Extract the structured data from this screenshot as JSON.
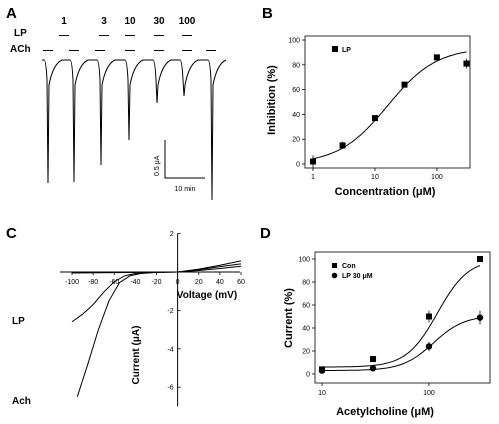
{
  "panel_labels": {
    "a": "A",
    "b": "B",
    "c": "C",
    "d": "D"
  },
  "trace_panel": {
    "lp_label": "LP",
    "ach_label": "ACh",
    "concentrations": [
      "1",
      "3",
      "10",
      "30",
      "100"
    ],
    "dash": "—",
    "scale_current": "0.5 μA",
    "scale_time": "10 min"
  },
  "chart_data": [
    {
      "panel": "B",
      "type": "scatter",
      "xscale": "log",
      "xlabel": "Concentration (μM)",
      "ylabel": "Inhibition (%)",
      "xlim": [
        1,
        300
      ],
      "ylim": [
        0,
        100
      ],
      "xticks": [
        1,
        10,
        100
      ],
      "xtick_labels": [
        "1",
        "10",
        "100"
      ],
      "yticks": [
        0,
        20,
        40,
        60,
        80,
        100
      ],
      "legend": "top-left",
      "series": [
        {
          "name": "LP",
          "marker": "square",
          "x": [
            1,
            3,
            10,
            30,
            100,
            300
          ],
          "y": [
            2,
            15,
            37,
            64,
            86,
            81
          ],
          "err": [
            5,
            3,
            2,
            2,
            2,
            4
          ],
          "fit": {
            "bottom": 0,
            "top": 94,
            "ec50": 16,
            "hill": 1.1
          }
        }
      ]
    },
    {
      "panel": "C",
      "type": "line",
      "xlabel": "Voltage (mV)",
      "ylabel": "Current (μA)",
      "xlim": [
        -100,
        60
      ],
      "ylim": [
        -7,
        2
      ],
      "xticks": [
        -100,
        -80,
        -60,
        -40,
        -20,
        0,
        20,
        40,
        60
      ],
      "yticks": [
        2,
        0,
        -2,
        -4,
        -6
      ],
      "series": [
        {
          "name": "LP",
          "x": [
            -100,
            -90,
            -80,
            -70,
            -60,
            -50,
            -40,
            -20,
            0,
            20,
            40,
            60
          ],
          "y": [
            -2.6,
            -2.2,
            -1.7,
            -1.05,
            -0.5,
            -0.2,
            -0.08,
            -0.02,
            0,
            0.12,
            0.28,
            0.42
          ]
        },
        {
          "name": "Ach",
          "x": [
            -95,
            -85,
            -75,
            -65,
            -55,
            -45,
            -35,
            -20,
            0,
            20,
            40,
            60
          ],
          "y": [
            -6.5,
            -4.8,
            -3.0,
            -1.5,
            -0.55,
            -0.2,
            -0.08,
            -0.02,
            0,
            0.15,
            0.35,
            0.58
          ]
        },
        {
          "name": "",
          "x": [
            -100,
            -60,
            -20,
            0,
            20,
            40,
            60
          ],
          "y": [
            -0.05,
            -0.03,
            -0.01,
            0,
            0.08,
            0.18,
            0.3
          ]
        }
      ]
    },
    {
      "panel": "D",
      "type": "scatter",
      "xscale": "log",
      "xlabel": "Acetylcholine (μM)",
      "ylabel": "Current (%)",
      "xlim": [
        10,
        300
      ],
      "ylim": [
        0,
        100
      ],
      "xticks": [
        10,
        100
      ],
      "xtick_labels": [
        "10",
        "100"
      ],
      "yticks": [
        0,
        20,
        40,
        60,
        80,
        100
      ],
      "legend": "top-left",
      "series": [
        {
          "name": "Con",
          "marker": "square",
          "x": [
            10,
            30,
            100,
            300
          ],
          "y": [
            4,
            13,
            50,
            100
          ],
          "err": [
            2,
            2,
            5,
            2
          ],
          "fit": {
            "bottom": 6,
            "top": 100,
            "ec50": 120,
            "hill": 3.0
          }
        },
        {
          "name": "LP 30 μM",
          "marker": "circle",
          "x": [
            10,
            30,
            100,
            300
          ],
          "y": [
            3,
            5,
            24,
            49
          ],
          "err": [
            2,
            2,
            4,
            6
          ],
          "fit": {
            "bottom": 3,
            "top": 51,
            "ec50": 110,
            "hill": 3.0
          }
        }
      ]
    }
  ]
}
